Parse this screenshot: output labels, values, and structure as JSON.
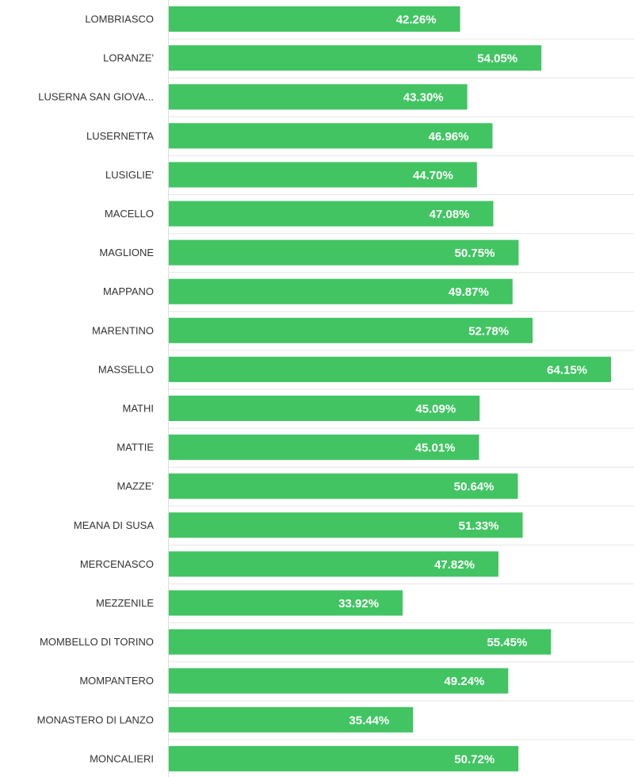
{
  "chart_data": {
    "type": "bar",
    "orientation": "horizontal",
    "categories": [
      "LOMBRIASCO",
      "LORANZE'",
      "LUSERNA SAN GIOVA...",
      "LUSERNETTA",
      "LUSIGLIE'",
      "MACELLO",
      "MAGLIONE",
      "MAPPANO",
      "MARENTINO",
      "MASSELLO",
      "MATHI",
      "MATTIE",
      "MAZZE'",
      "MEANA DI SUSA",
      "MERCENASCO",
      "MEZZENILE",
      "MOMBELLO DI TORINO",
      "MOMPANTERO",
      "MONASTERO DI LANZO",
      "MONCALIERI"
    ],
    "values": [
      42.26,
      54.05,
      43.3,
      46.96,
      44.7,
      47.08,
      50.75,
      49.87,
      52.78,
      64.15,
      45.09,
      45.01,
      50.64,
      51.33,
      47.82,
      33.92,
      55.45,
      49.24,
      35.44,
      50.72
    ],
    "value_labels": [
      "42.26%",
      "54.05%",
      "43.30%",
      "46.96%",
      "44.70%",
      "47.08%",
      "50.75%",
      "49.87%",
      "52.78%",
      "64.15%",
      "45.09%",
      "45.01%",
      "50.64%",
      "51.33%",
      "47.82%",
      "33.92%",
      "55.45%",
      "49.24%",
      "35.44%",
      "50.72%"
    ],
    "xlim": [
      0,
      64.15
    ],
    "bar_color": "#42c463",
    "label_color": "#333333",
    "value_label_color": "#ffffff",
    "grid": false,
    "title": "",
    "xlabel": "",
    "ylabel": ""
  }
}
